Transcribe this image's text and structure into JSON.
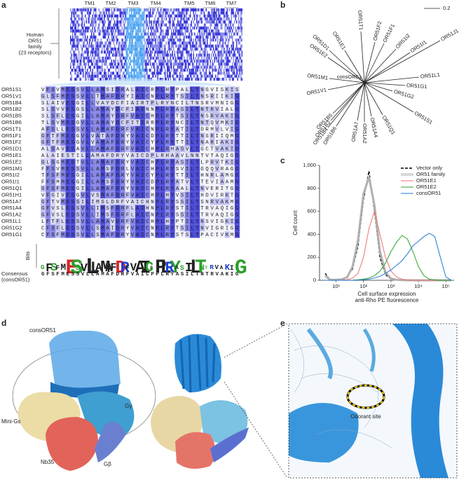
{
  "panel_a": {
    "label": "a",
    "tm_labels": [
      "TM1",
      "TM2",
      "TM3",
      "TM4",
      "TM5",
      "TM6",
      "TM7"
    ],
    "family_label": [
      "Human",
      "OR51",
      "family",
      "(23 receptors)"
    ],
    "rows": [
      {
        "name": "OR51S1",
        "seq": "VFSVMESSVLLAMSIDRALAICRPLHYPALLTNGVISKIS"
      },
      {
        "name": "OR51V1",
        "seq": "GLSFMESSVLLTMAFDRYIAICNPLRYTSILTNSRIIKIG"
      },
      {
        "name": "OR51B4",
        "seq": "SLAIVESGILLVAYDCFIAIRTPLRYNCILTNSRVMNIGG"
      },
      {
        "name": "OR51B2",
        "seq": "SLSVVESGSLLAMAYDCFIAINNPLRYASILTNTRVIALG"
      },
      {
        "name": "OR51B5",
        "seq": "SLSFLESGILLAMAYDRFVAICHPLRYTSILTNSRVAKIG"
      },
      {
        "name": "OR51B6",
        "seq": "TLSVMESGVLLAMAYDCFITIRRPLRYNCILTNTQVMKIG"
      },
      {
        "name": "OR51T1",
        "seq": "AFSLLESSVLLAMAFDRFVAICNPLRYATILTDRMVLVIG"
      },
      {
        "name": "OR51F1",
        "seq": "GFTFMESGVLVATAFDRYVAICDPLRYTTILTNSRIIQMG"
      },
      {
        "name": "OR51F2",
        "seq": "GFTFMESGVLVAMAFDRYVAICYPLRYTTILTNARIAKIG"
      },
      {
        "name": "OR51D1",
        "seq": "ALSAVESAVLLAMAFDRFVAICHPLRHASVLTGCTVAKIG"
      },
      {
        "name": "OR51E1",
        "seq": "ALAIESTILLAMAFDRYVAICDPLRHAAVLNNTVTAQIGG"
      },
      {
        "name": "OR51E2",
        "seq": "GLSGMESTVLLAMAFDRYVAICHPLRYASILTLPRVTKIG"
      },
      {
        "name": "OR51M1",
        "seq": "FFSVMESSVLLAMSFDRLVAICHPLRYSVILTGQQVRAGG"
      },
      {
        "name": "OR51I2",
        "seq": "TFSFMESGILLAMAFDRYVAICYPLRYTTILTHNRLAMGG"
      },
      {
        "name": "OR51I1",
        "seq": "FFSMMESGILLAMSFDRYVAICDPLRYATVLTTEVIAAMG"
      },
      {
        "name": "OR51Q1",
        "seq": "GFSFMESGILLAMAFDRYVAICHPLRYAALLTNVERITGG"
      },
      {
        "name": "OR51H1",
        "seq": "VFGIVESGVLVSMAFDRFVAICHPLHYVSILTHDVIRKTG"
      },
      {
        "name": "OR51A7",
        "seq": "GFTVMESSILIMSLDRFVAICHNPLRYSSILTSNRVAKMG"
      },
      {
        "name": "OR51A4",
        "seq": "GFVSLESSVLLIMSFDRFLAIHNPLRYSTILTTRVAQIGG"
      },
      {
        "name": "OR51A2",
        "seq": "GFVSLESSVLLIMSFDRFLAICNPLRYSSILTTRVAQIGG"
      },
      {
        "name": "OR51L1",
        "seq": "LFTFLESSVLLAMAVDRFVAICHPLHYPTILTNSVIGKIG"
      },
      {
        "name": "OR51G2",
        "seq": "CFSFLESSVLLSMAIDRYVAICNPLRYTSILTNVIGRIGG"
      },
      {
        "name": "OR51G1",
        "seq": "CFSFMESSVLLSMAFDRYVAICNPLRYSTSLTPACIVKMG"
      }
    ],
    "logo_label": "Bits",
    "consensus_label": [
      "Consensus",
      "(consOR51)"
    ],
    "consensus": "GFSFMESSVLLAMAFDRFVAICPPLRYASILTNTRVAKIG"
  },
  "panel_b": {
    "label": "b",
    "scale_label": "0.2",
    "center_label": "consOR51",
    "leaves": [
      "OR51F2",
      "OR51T1",
      "OR51F1",
      "OR51E1",
      "OR51D1",
      "OR51E2",
      "OR51I2",
      "OR51I1",
      "OR51J1",
      "OR51L1",
      "OR51G1",
      "OR51G2",
      "OR51M1",
      "OR51V1",
      "OR51B5",
      "OR51B4",
      "OR51B6",
      "OR51B2",
      "OR51A7",
      "OR51A2",
      "OR51A4",
      "OR51Q1",
      "OR51S1"
    ]
  },
  "panel_c": {
    "label": "c",
    "chart": {
      "type": "line",
      "ylabel": "Cell count",
      "xlabel": [
        "Cell surface expression",
        "anti-Rho PE fluorescence"
      ],
      "xscale": "log",
      "xlim": [
        2.5,
        200000
      ],
      "ylim": [
        0,
        1000
      ],
      "xticks": [
        {
          "value": 10,
          "label": "10¹"
        },
        {
          "value": 100,
          "label": "10²"
        },
        {
          "value": 1000,
          "label": "10³"
        },
        {
          "value": 10000,
          "label": "10⁴"
        },
        {
          "value": 100000,
          "label": "10⁵"
        }
      ],
      "yticks": [
        0,
        200,
        400,
        600,
        800,
        {
          "value": 1000,
          "label": "1,000"
        }
      ],
      "x": [
        4,
        6,
        10,
        16,
        25,
        40,
        63,
        100,
        158,
        251,
        398,
        631,
        1000,
        1585,
        2512,
        3981,
        6310,
        10000,
        15849,
        25119,
        39811,
        63096,
        100000,
        158489
      ],
      "series": [
        {
          "name": "Vector only",
          "color": "#000000",
          "style": "dashed",
          "values": [
            60,
            5,
            5,
            10,
            30,
            100,
            300,
            700,
            950,
            600,
            200,
            50,
            10,
            2,
            0,
            0,
            0,
            0,
            0,
            0,
            0,
            0,
            0,
            0
          ]
        },
        {
          "name": "OR51 family",
          "color": "#b0b0b0",
          "style": "double",
          "values": [
            40,
            5,
            5,
            8,
            25,
            120,
            350,
            750,
            900,
            650,
            250,
            70,
            15,
            5,
            1,
            0,
            0,
            0,
            0,
            0,
            0,
            0,
            0,
            0
          ]
        },
        {
          "name": "OR51E1",
          "color": "#f07070",
          "style": "solid",
          "values": [
            0,
            0,
            0,
            0,
            5,
            20,
            60,
            200,
            450,
            600,
            400,
            200,
            80,
            30,
            10,
            3,
            0,
            0,
            0,
            0,
            0,
            0,
            0,
            0
          ]
        },
        {
          "name": "OR51E2",
          "color": "#2ca02c",
          "style": "solid",
          "values": [
            0,
            0,
            0,
            0,
            0,
            2,
            5,
            10,
            20,
            40,
            80,
            150,
            250,
            330,
            390,
            360,
            250,
            120,
            40,
            10,
            3,
            0,
            0,
            0
          ]
        },
        {
          "name": "consOR51",
          "color": "#1f77d4",
          "style": "solid",
          "values": [
            0,
            0,
            0,
            0,
            0,
            0,
            2,
            5,
            10,
            20,
            35,
            60,
            90,
            130,
            170,
            230,
            300,
            340,
            380,
            410,
            380,
            200,
            30,
            0
          ]
        }
      ]
    }
  },
  "panel_d": {
    "label": "d",
    "labels": [
      "consOR51",
      "Gγ",
      "Mini-Gs",
      "Nb35",
      "Gβ"
    ]
  },
  "panel_e": {
    "label": "e",
    "site_label": "Odorant site"
  }
}
